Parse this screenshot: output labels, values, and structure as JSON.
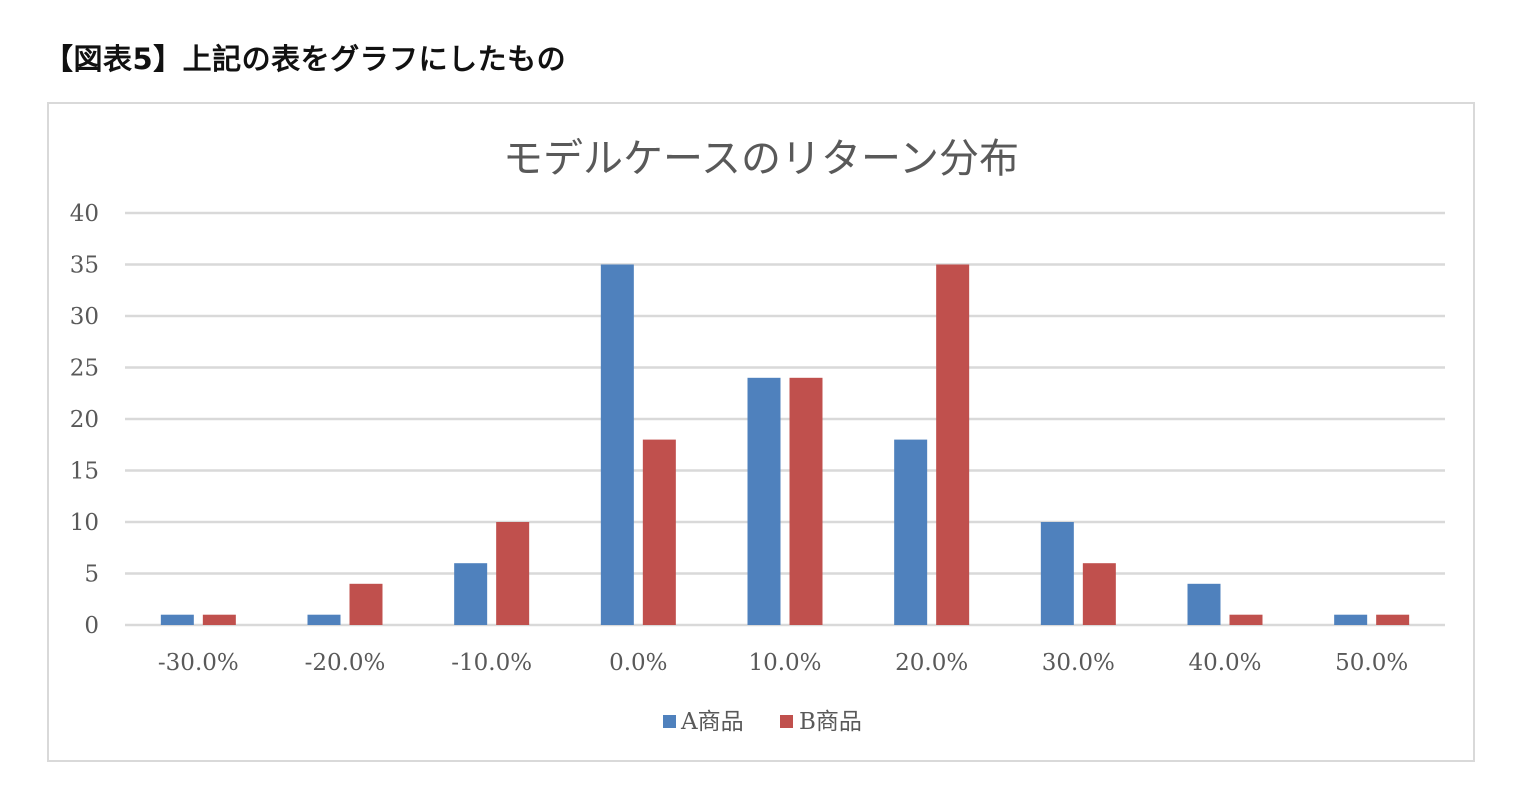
{
  "figure_title": "【図表5】上記の表をグラフにしたもの",
  "chart_data": {
    "type": "bar",
    "title": "モデルケースのリターン分布",
    "categories": [
      "-30.0%",
      "-20.0%",
      "-10.0%",
      "0.0%",
      "10.0%",
      "20.0%",
      "30.0%",
      "40.0%",
      "50.0%"
    ],
    "series": [
      {
        "name": "A商品",
        "color": "#4f81bd",
        "values": [
          1,
          1,
          6,
          35,
          24,
          18,
          10,
          4,
          1
        ]
      },
      {
        "name": "B商品",
        "color": "#c0504d",
        "values": [
          1,
          4,
          10,
          18,
          24,
          35,
          6,
          1,
          1
        ]
      }
    ],
    "ylim": [
      0,
      40
    ],
    "yticks": [
      0,
      5,
      10,
      15,
      20,
      25,
      30,
      35,
      40
    ],
    "xlabel": "",
    "ylabel": "",
    "grid": true,
    "legend": "bottom"
  }
}
